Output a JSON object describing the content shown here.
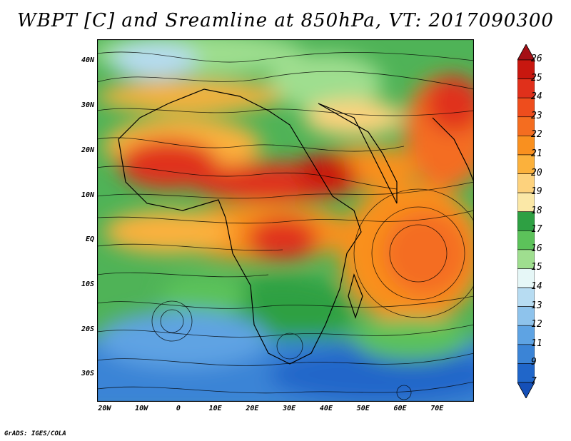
{
  "title": "WBPT [C] and Sreamline at 850hPa, VT: 2017090300",
  "credit": "GrADS: IGES/COLA",
  "map": {
    "lat_range": [
      -36,
      45
    ],
    "lon_range": [
      -22,
      80
    ],
    "lat_ticks": [
      {
        "value": 40,
        "label": "40N"
      },
      {
        "value": 30,
        "label": "30N"
      },
      {
        "value": 20,
        "label": "20N"
      },
      {
        "value": 10,
        "label": "10N"
      },
      {
        "value": 0,
        "label": "EQ"
      },
      {
        "value": -10,
        "label": "10S"
      },
      {
        "value": -20,
        "label": "20S"
      },
      {
        "value": -30,
        "label": "30S"
      }
    ],
    "lon_ticks": [
      {
        "value": -20,
        "label": "20W"
      },
      {
        "value": -10,
        "label": "10W"
      },
      {
        "value": 0,
        "label": "0"
      },
      {
        "value": 10,
        "label": "10E"
      },
      {
        "value": 20,
        "label": "20E"
      },
      {
        "value": 30,
        "label": "30E"
      },
      {
        "value": 40,
        "label": "40E"
      },
      {
        "value": 50,
        "label": "50E"
      },
      {
        "value": 60,
        "label": "60E"
      },
      {
        "value": 70,
        "label": "70E"
      }
    ]
  },
  "colorbar": {
    "levels": [
      "26",
      "25",
      "24",
      "23",
      "22",
      "21",
      "20",
      "19",
      "18",
      "17",
      "16",
      "15",
      "14",
      "13",
      "12",
      "11",
      "9",
      "7"
    ],
    "colors": [
      "#a50f15",
      "#c8170f",
      "#e0301b",
      "#ee4d1d",
      "#f46d20",
      "#f9901f",
      "#fbb13c",
      "#fdd27d",
      "#fbe8a7",
      "#2ea043",
      "#5cc25a",
      "#9fde8f",
      "#e6f7f7",
      "#b7dcf2",
      "#8ec3ec",
      "#5ea3e3",
      "#3b84d6",
      "#2066c9",
      "#1550b8"
    ]
  }
}
